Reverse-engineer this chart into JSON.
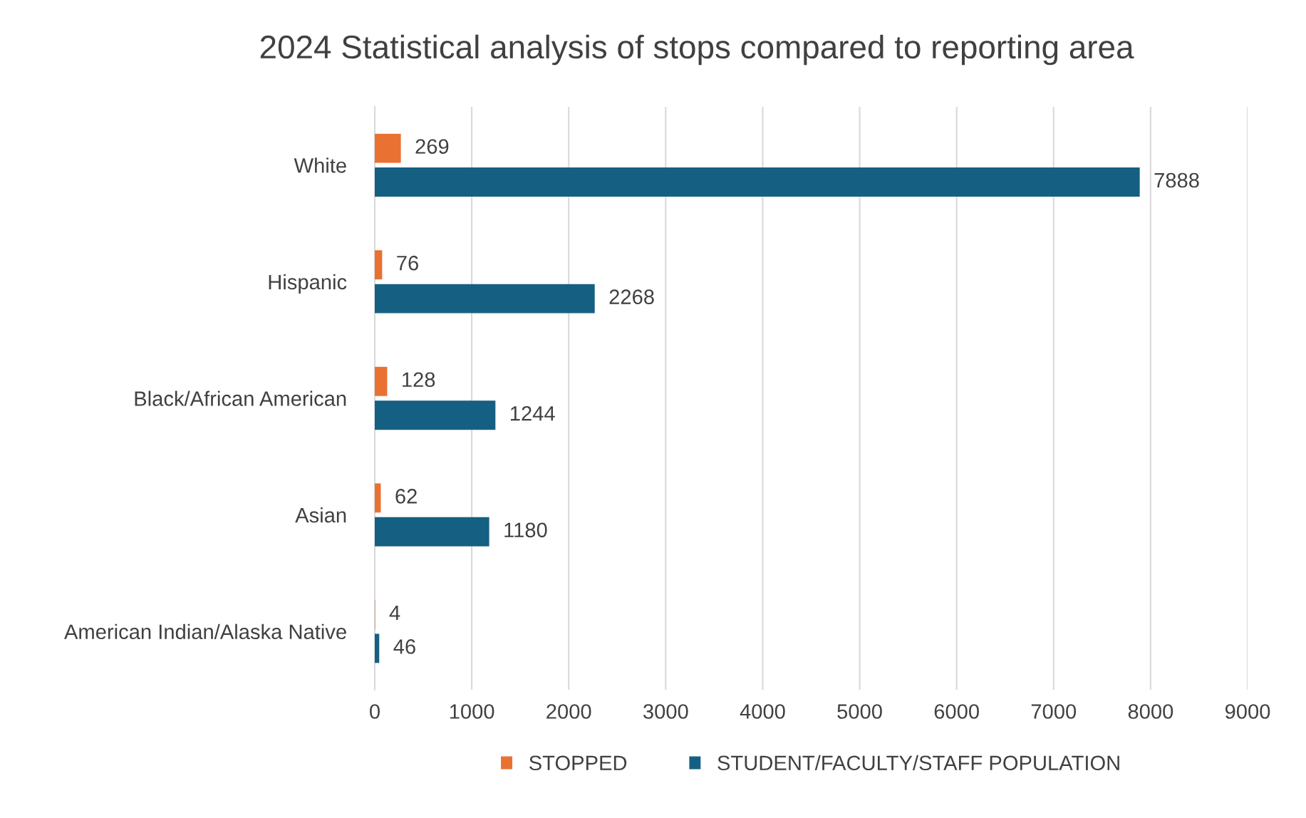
{
  "chart_data": {
    "type": "bar",
    "orientation": "horizontal",
    "title": "2024 Statistical analysis of stops compared to reporting area",
    "categories": [
      "White",
      "Hispanic",
      "Black/African American",
      "Asian",
      "American Indian/Alaska Native"
    ],
    "series": [
      {
        "name": "STOPPED",
        "color": "#e97132",
        "values": [
          269,
          76,
          128,
          62,
          4
        ]
      },
      {
        "name": "STUDENT/FACULTY/STAFF POPULATION",
        "color": "#156082",
        "values": [
          7888,
          2268,
          1244,
          1180,
          46
        ]
      }
    ],
    "xlim": [
      0,
      9000
    ],
    "xticks": [
      0,
      1000,
      2000,
      3000,
      4000,
      5000,
      6000,
      7000,
      8000,
      9000
    ],
    "grid": "x",
    "legend": "bottom",
    "data_labels": true
  }
}
